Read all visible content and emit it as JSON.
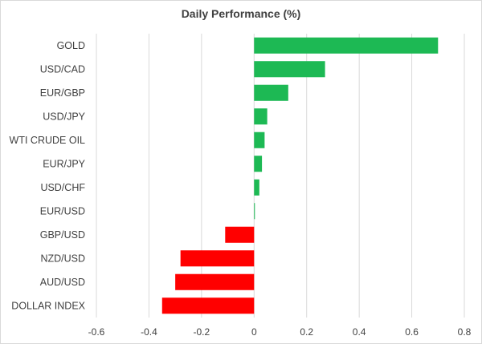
{
  "chart_data": {
    "type": "bar",
    "orientation": "horizontal",
    "title": "Daily Performance (%)",
    "categories": [
      "GOLD",
      "USD/CAD",
      "EUR/GBP",
      "USD/JPY",
      "WTI CRUDE OIL",
      "EUR/JPY",
      "USD/CHF",
      "EUR/USD",
      "GBP/USD",
      "NZD/USD",
      "AUD/USD",
      "DOLLAR INDEX"
    ],
    "values": [
      0.7,
      0.27,
      0.13,
      0.05,
      0.04,
      0.03,
      0.02,
      0.0,
      -0.11,
      -0.28,
      -0.3,
      -0.35
    ],
    "xlim": [
      -0.6,
      0.8
    ],
    "xticks": [
      -0.6,
      -0.4,
      -0.2,
      0,
      0.2,
      0.4,
      0.6,
      0.8
    ],
    "xtick_labels": [
      "-0.6",
      "-0.4",
      "-0.2",
      "0",
      "0.2",
      "0.4",
      "0.6",
      "0.8"
    ],
    "grid": true,
    "colors": {
      "positive": "#1db954",
      "negative": "#ff0000",
      "grid": "#d9d9d9",
      "text": "#404040"
    }
  }
}
